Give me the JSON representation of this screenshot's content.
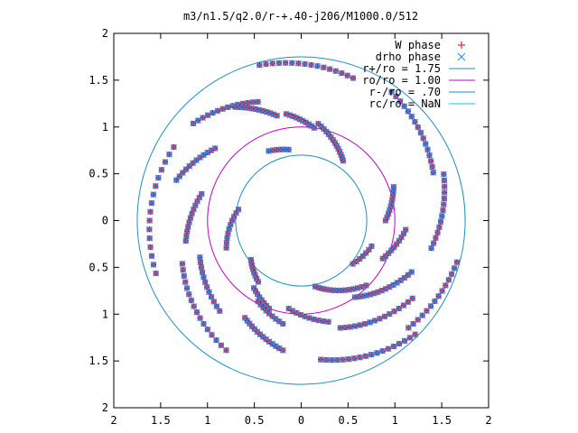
{
  "chart_data": {
    "type": "scatter",
    "title": "m3/n1.5/q2.0/r-+.40-j206/M1000.0/512",
    "xlabel": "",
    "ylabel": "",
    "xlim": [
      -2,
      2
    ],
    "ylim": [
      -2,
      2
    ],
    "x_tick_labels": [
      "2",
      "1.5",
      "1",
      "0.5",
      "0",
      "0.5",
      "1",
      "1.5",
      "2"
    ],
    "y_tick_labels": [
      "2",
      "1.5",
      "1",
      "0.5",
      "0",
      "0.5",
      "1",
      "1.5",
      "2"
    ],
    "legend_position": "top-right",
    "grid": false,
    "circles": [
      {
        "name": "r+/ro = 1.75",
        "radius": 1.75,
        "color": "#1e90c0"
      },
      {
        "name": "ro/ro = 1.00",
        "radius": 1.0,
        "color": "#c000c0"
      },
      {
        "name": "r-/ro = .70",
        "radius": 0.7,
        "color": "#1e90c0"
      },
      {
        "name": "rc/ro = NaN",
        "radius": null,
        "color": "#00d0d0"
      }
    ],
    "series": [
      {
        "name": "W phase",
        "marker": "+",
        "color": "#e00000"
      },
      {
        "name": "drho phase",
        "marker": "x",
        "color": "#1f8fff"
      }
    ],
    "arms": [
      {
        "r": [
          1.57,
          1.65
        ],
        "theta_deg": [
          150,
          200
        ],
        "n": 16
      },
      {
        "r": [
          1.35,
          1.6
        ],
        "theta_deg": [
          200,
          240
        ],
        "n": 16
      },
      {
        "r": [
          1.2,
          1.4
        ],
        "theta_deg": [
          240,
          262
        ],
        "n": 14
      },
      {
        "r": [
          1.35,
          1.55
        ],
        "theta_deg": [
          110,
          138
        ],
        "n": 14
      },
      {
        "r": [
          1.62,
          1.72
        ],
        "theta_deg": [
          70,
          105
        ],
        "n": 16
      },
      {
        "r": [
          1.5,
          1.68
        ],
        "theta_deg": [
          20,
          55
        ],
        "n": 16
      },
      {
        "r": [
          1.42,
          1.6
        ],
        "theta_deg": [
          -12,
          18
        ],
        "n": 14
      },
      {
        "r": [
          1.62,
          1.72
        ],
        "theta_deg": [
          -45,
          -15
        ],
        "n": 14
      },
      {
        "r": [
          1.5,
          1.72
        ],
        "theta_deg": [
          -82,
          -45
        ],
        "n": 18
      },
      {
        "r": [
          1.22,
          1.45
        ],
        "theta_deg": [
          -70,
          -35
        ],
        "n": 16
      },
      {
        "r": [
          1.0,
          1.3
        ],
        "theta_deg": [
          -55,
          -25
        ],
        "n": 16
      },
      {
        "r": [
          0.96,
          1.12
        ],
        "theta_deg": [
          -25,
          -5
        ],
        "n": 10
      },
      {
        "r": [
          0.9,
          1.05
        ],
        "theta_deg": [
          0,
          20
        ],
        "n": 10
      },
      {
        "r": [
          0.72,
          0.98
        ],
        "theta_deg": [
          -78,
          -45
        ],
        "n": 14
      },
      {
        "r": [
          0.95,
          1.12
        ],
        "theta_deg": [
          -98,
          -75
        ],
        "n": 10
      },
      {
        "r": [
          1.15,
          1.3
        ],
        "theta_deg": [
          200,
          228
        ],
        "n": 12
      },
      {
        "r": [
          1.1,
          1.25
        ],
        "theta_deg": [
          165,
          190
        ],
        "n": 12
      },
      {
        "r": [
          1.2,
          1.4
        ],
        "theta_deg": [
          140,
          162
        ],
        "n": 12
      },
      {
        "r": [
          1.15,
          1.4
        ],
        "theta_deg": [
          103,
          120
        ],
        "n": 12
      },
      {
        "r": [
          1.0,
          1.15
        ],
        "theta_deg": [
          82,
          98
        ],
        "n": 10
      },
      {
        "r": [
          0.78,
          1.05
        ],
        "theta_deg": [
          55,
          80
        ],
        "n": 14
      },
      {
        "r": [
          0.77,
          0.82
        ],
        "theta_deg": [
          100,
          115
        ],
        "n": 6
      },
      {
        "r": [
          0.68,
          0.85
        ],
        "theta_deg": [
          170,
          200
        ],
        "n": 10
      },
      {
        "r": [
          0.68,
          0.8
        ],
        "theta_deg": [
          218,
          235
        ],
        "n": 8
      },
      {
        "r": [
          0.88,
          1.0
        ],
        "theta_deg": [
          235,
          250
        ],
        "n": 8
      },
      {
        "r": [
          0.98,
          1.12
        ],
        "theta_deg": [
          -118,
          -100
        ],
        "n": 9
      },
      {
        "r": [
          0.72,
          0.8
        ],
        "theta_deg": [
          -40,
          -20
        ],
        "n": 7
      }
    ]
  }
}
